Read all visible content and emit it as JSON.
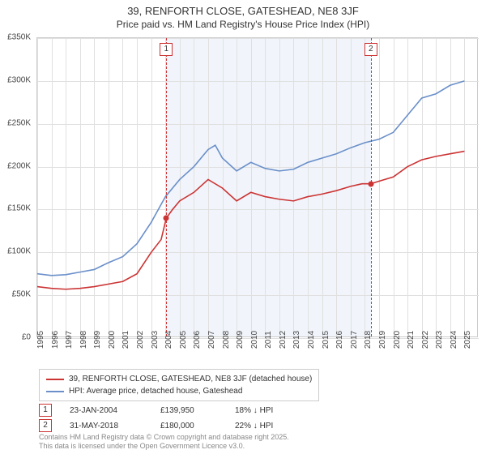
{
  "title_line1": "39, RENFORTH CLOSE, GATESHEAD, NE8 3JF",
  "title_line2": "Price paid vs. HM Land Registry's House Price Index (HPI)",
  "chart": {
    "type": "line",
    "background_color": "#ffffff",
    "grid_color": "#e0e0e0",
    "border_color": "#cccccc",
    "shaded_band_color": "#f1f5fb",
    "shaded_band_x": [
      2004.06,
      2018.42
    ],
    "xlim": [
      1995,
      2026
    ],
    "ylim": [
      0,
      350000
    ],
    "ytick_step": 50000,
    "ytick_labels": [
      "£0",
      "£50K",
      "£100K",
      "£150K",
      "£200K",
      "£250K",
      "£300K",
      "£350K"
    ],
    "xticks": [
      1995,
      1996,
      1997,
      1998,
      1999,
      2000,
      2001,
      2002,
      2003,
      2004,
      2005,
      2006,
      2007,
      2008,
      2009,
      2010,
      2011,
      2012,
      2013,
      2014,
      2015,
      2016,
      2017,
      2018,
      2019,
      2020,
      2021,
      2022,
      2023,
      2024,
      2025
    ],
    "label_fontsize": 10,
    "title_fontsize": 13,
    "line_width": 1.6,
    "series": [
      {
        "name": "39, RENFORTH CLOSE, GATESHEAD, NE8 3JF (detached house)",
        "color": "#cc3333",
        "data": [
          [
            1995,
            60000
          ],
          [
            1996,
            58000
          ],
          [
            1997,
            57000
          ],
          [
            1998,
            58000
          ],
          [
            1999,
            60000
          ],
          [
            2000,
            63000
          ],
          [
            2001,
            66000
          ],
          [
            2002,
            75000
          ],
          [
            2003,
            100000
          ],
          [
            2003.7,
            115000
          ],
          [
            2004.06,
            139950
          ],
          [
            2004.5,
            150000
          ],
          [
            2005,
            160000
          ],
          [
            2006,
            170000
          ],
          [
            2007,
            185000
          ],
          [
            2008,
            175000
          ],
          [
            2009,
            160000
          ],
          [
            2010,
            170000
          ],
          [
            2011,
            165000
          ],
          [
            2012,
            162000
          ],
          [
            2013,
            160000
          ],
          [
            2014,
            165000
          ],
          [
            2015,
            168000
          ],
          [
            2016,
            172000
          ],
          [
            2017,
            177000
          ],
          [
            2017.8,
            180000
          ],
          [
            2018.42,
            180000
          ],
          [
            2019,
            183000
          ],
          [
            2020,
            188000
          ],
          [
            2021,
            200000
          ],
          [
            2022,
            208000
          ],
          [
            2023,
            212000
          ],
          [
            2024,
            215000
          ],
          [
            2025,
            218000
          ]
        ]
      },
      {
        "name": "HPI: Average price, detached house, Gateshead",
        "color": "#6a8fc9",
        "data": [
          [
            1995,
            75000
          ],
          [
            1996,
            73000
          ],
          [
            1997,
            74000
          ],
          [
            1998,
            77000
          ],
          [
            1999,
            80000
          ],
          [
            2000,
            88000
          ],
          [
            2001,
            95000
          ],
          [
            2002,
            110000
          ],
          [
            2003,
            135000
          ],
          [
            2004,
            165000
          ],
          [
            2005,
            185000
          ],
          [
            2006,
            200000
          ],
          [
            2007,
            220000
          ],
          [
            2007.5,
            225000
          ],
          [
            2008,
            210000
          ],
          [
            2009,
            195000
          ],
          [
            2010,
            205000
          ],
          [
            2011,
            198000
          ],
          [
            2012,
            195000
          ],
          [
            2013,
            197000
          ],
          [
            2014,
            205000
          ],
          [
            2015,
            210000
          ],
          [
            2016,
            215000
          ],
          [
            2017,
            222000
          ],
          [
            2018,
            228000
          ],
          [
            2019,
            232000
          ],
          [
            2020,
            240000
          ],
          [
            2021,
            260000
          ],
          [
            2022,
            280000
          ],
          [
            2023,
            285000
          ],
          [
            2024,
            295000
          ],
          [
            2025,
            300000
          ]
        ]
      }
    ],
    "markers": [
      {
        "label": "1",
        "x": 2004.06,
        "y": 139950,
        "box_top": true
      },
      {
        "label": "2",
        "x": 2018.42,
        "y": 180000,
        "box_top": true
      }
    ],
    "marker_line_color": "#cc3333",
    "marker_point_color": "#cc3333",
    "marker_box_border": "#cc3333"
  },
  "legend": {
    "items": [
      {
        "color": "#cc3333",
        "label": "39, RENFORTH CLOSE, GATESHEAD, NE8 3JF (detached house)"
      },
      {
        "color": "#6a8fc9",
        "label": "HPI: Average price, detached house, Gateshead"
      }
    ]
  },
  "events": [
    {
      "num": "1",
      "date": "23-JAN-2004",
      "price": "£139,950",
      "diff": "18% ↓ HPI"
    },
    {
      "num": "2",
      "date": "31-MAY-2018",
      "price": "£180,000",
      "diff": "22% ↓ HPI"
    }
  ],
  "footer_line1": "Contains HM Land Registry data © Crown copyright and database right 2025.",
  "footer_line2": "This data is licensed under the Open Government Licence v3.0."
}
